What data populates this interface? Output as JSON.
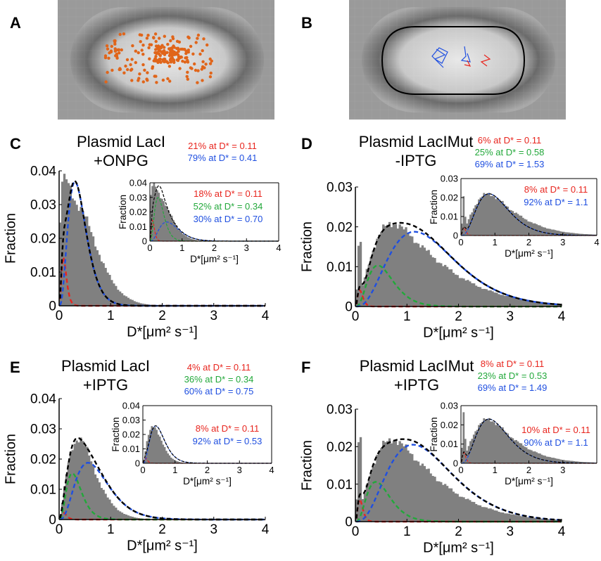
{
  "panel_labels": {
    "a": "A",
    "b": "B",
    "c": "C",
    "d": "D",
    "e": "E",
    "f": "F"
  },
  "fraction_label": "Fraction",
  "x_label": "D*[μm² s⁻¹]",
  "chart_data": [
    {
      "panel": "C",
      "type": "bar+line",
      "title": [
        "Plasmid LacI",
        "+ONPG"
      ],
      "xlabel": "D*[μm² s⁻¹]",
      "ylabel": "Fraction",
      "xlim": [
        0,
        4
      ],
      "ylim": [
        0,
        0.04
      ],
      "xticks": [
        0,
        1,
        2,
        3,
        4
      ],
      "yticks": [
        0,
        0.01,
        0.02,
        0.03,
        0.04
      ],
      "histogram": {
        "x_end": 3.2,
        "peak_x": 0.15,
        "peak": 0.037,
        "plateau": 0.03,
        "plateau_end": 0.35,
        "decay": 0.55
      },
      "legend": [
        {
          "text": "21% at D* = 0.11",
          "color": "#e8251e"
        },
        {
          "text": "79% at D* = 0.41",
          "color": "#1f4fe0"
        }
      ],
      "series": [
        {
          "color": "#e8251e",
          "fraction": 0.21,
          "D": 0.11
        },
        {
          "color": "#1f4fe0",
          "fraction": 0.79,
          "D": 0.41
        },
        {
          "color": "#000000",
          "kind": "sum"
        }
      ],
      "inset": {
        "xlim": [
          0,
          4
        ],
        "ylim": [
          0,
          0.04
        ],
        "xticks": [
          0,
          1,
          2,
          3,
          4
        ],
        "yticks": [
          0,
          0.01,
          0.02,
          0.03,
          0.04
        ],
        "histogram": {
          "x_end": 3.0,
          "peak_x": 0.15,
          "peak": 0.038,
          "plateau": 0.031,
          "plateau_end": 0.3,
          "decay": 0.5
        },
        "legend": [
          {
            "text": "18% at D* = 0.11",
            "color": "#e8251e"
          },
          {
            "text": "52% at D* = 0.34",
            "color": "#22a83a"
          },
          {
            "text": "30% at D* = 0.70",
            "color": "#1f4fe0"
          }
        ]
      }
    },
    {
      "panel": "D",
      "type": "bar+line",
      "title": [
        "Plasmid LacIMut",
        "-IPTG"
      ],
      "xlabel": "D*[μm² s⁻¹]",
      "ylabel": "Fraction",
      "xlim": [
        0,
        4
      ],
      "ylim": [
        0,
        0.03
      ],
      "xticks": [
        0,
        1,
        2,
        3,
        4
      ],
      "yticks": [
        0,
        0.01,
        0.02,
        0.03
      ],
      "histogram": {
        "x_end": 4.0,
        "peak_x": 0.75,
        "peak": 0.021,
        "spike": 0.018,
        "decay": 1.25
      },
      "legend": [
        {
          "text": "6% at D* = 0.11",
          "color": "#e8251e"
        },
        {
          "text": "25% at D* = 0.58",
          "color": "#22a83a"
        },
        {
          "text": "69% at D* = 1.53",
          "color": "#1f4fe0"
        }
      ],
      "series": [
        {
          "color": "#e8251e",
          "fraction": 0.06,
          "D": 0.11
        },
        {
          "color": "#22a83a",
          "fraction": 0.25,
          "D": 0.58
        },
        {
          "color": "#1f4fe0",
          "fraction": 0.69,
          "D": 1.53
        },
        {
          "color": "#000000",
          "kind": "sum"
        }
      ],
      "inset": {
        "xlim": [
          0,
          4
        ],
        "ylim": [
          0,
          0.03
        ],
        "xticks": [
          0,
          1,
          2,
          3,
          4
        ],
        "yticks": [
          0,
          0.01,
          0.02,
          0.03
        ],
        "histogram": {
          "x_end": 4.0,
          "peak_x": 0.85,
          "peak": 0.022,
          "spike": 0.021,
          "decay": 1.1
        },
        "legend": [
          {
            "text": "8% at D* = 0.11",
            "color": "#e8251e"
          },
          {
            "text": "92% at D* = 1.1",
            "color": "#1f4fe0"
          }
        ]
      }
    },
    {
      "panel": "E",
      "type": "bar+line",
      "title": [
        "Plasmid LacI",
        "+IPTG"
      ],
      "xlabel": "D*[μm² s⁻¹]",
      "ylabel": "Fraction",
      "xlim": [
        0,
        4
      ],
      "ylim": [
        0,
        0.04
      ],
      "xticks": [
        0,
        1,
        2,
        3,
        4
      ],
      "yticks": [
        0,
        0.01,
        0.02,
        0.03,
        0.04
      ],
      "histogram": {
        "x_end": 2.0,
        "peak_x": 0.4,
        "peak": 0.027,
        "decay": 0.45
      },
      "legend": [
        {
          "text": "4% at D* = 0.11",
          "color": "#e8251e"
        },
        {
          "text": "36% at D* = 0.34",
          "color": "#22a83a"
        },
        {
          "text": "60% at D* = 0.75",
          "color": "#1f4fe0"
        }
      ],
      "series": [
        {
          "color": "#e8251e",
          "fraction": 0.04,
          "D": 0.11
        },
        {
          "color": "#22a83a",
          "fraction": 0.36,
          "D": 0.34
        },
        {
          "color": "#1f4fe0",
          "fraction": 0.6,
          "D": 0.75
        },
        {
          "color": "#000000",
          "kind": "sum"
        }
      ],
      "inset": {
        "xlim": [
          0,
          4
        ],
        "ylim": [
          0,
          0.04
        ],
        "xticks": [
          0,
          1,
          2,
          3,
          4
        ],
        "yticks": [
          0,
          0.01,
          0.02,
          0.03,
          0.04
        ],
        "histogram": {
          "x_end": 1.6,
          "peak_x": 0.35,
          "peak": 0.026,
          "decay": 0.35
        },
        "legend": [
          {
            "text": "8% at D* = 0.11",
            "color": "#e8251e"
          },
          {
            "text": "92% at D* = 0.53",
            "color": "#1f4fe0"
          }
        ]
      }
    },
    {
      "panel": "F",
      "type": "bar+line",
      "title": [
        "Plasmid LacIMut",
        "+IPTG"
      ],
      "xlabel": "D*[μm² s⁻¹]",
      "ylabel": "Fraction",
      "xlim": [
        0,
        4
      ],
      "ylim": [
        0,
        0.03
      ],
      "xticks": [
        0,
        1,
        2,
        3,
        4
      ],
      "yticks": [
        0,
        0.01,
        0.02,
        0.03
      ],
      "histogram": {
        "x_end": 4.0,
        "peak_x": 0.75,
        "peak": 0.022,
        "spike": 0.025,
        "decay": 1.15
      },
      "legend": [
        {
          "text": "8% at D* = 0.11",
          "color": "#e8251e"
        },
        {
          "text": "23% at D* = 0.53",
          "color": "#22a83a"
        },
        {
          "text": "69% at D* = 1.49",
          "color": "#1f4fe0"
        }
      ],
      "series": [
        {
          "color": "#e8251e",
          "fraction": 0.08,
          "D": 0.11
        },
        {
          "color": "#22a83a",
          "fraction": 0.23,
          "D": 0.53
        },
        {
          "color": "#1f4fe0",
          "fraction": 0.69,
          "D": 1.49
        },
        {
          "color": "#000000",
          "kind": "sum"
        }
      ],
      "inset": {
        "xlim": [
          0,
          4
        ],
        "ylim": [
          0,
          0.03
        ],
        "xticks": [
          0,
          1,
          2,
          3
        ],
        "yticks": [
          0,
          0.01,
          0.02,
          0.03
        ],
        "histogram": {
          "x_end": 4.0,
          "peak_x": 0.85,
          "peak": 0.023,
          "spike": 0.027,
          "decay": 1.05
        },
        "legend": [
          {
            "text": "10% at D* = 0.11",
            "color": "#e8251e"
          },
          {
            "text": "90% at D* = 1.1",
            "color": "#1f4fe0"
          }
        ]
      }
    }
  ],
  "colors": {
    "histogram": "#808080",
    "red": "#e8251e",
    "green": "#22a83a",
    "blue": "#1f4fe0",
    "orange": "#e0651a"
  }
}
